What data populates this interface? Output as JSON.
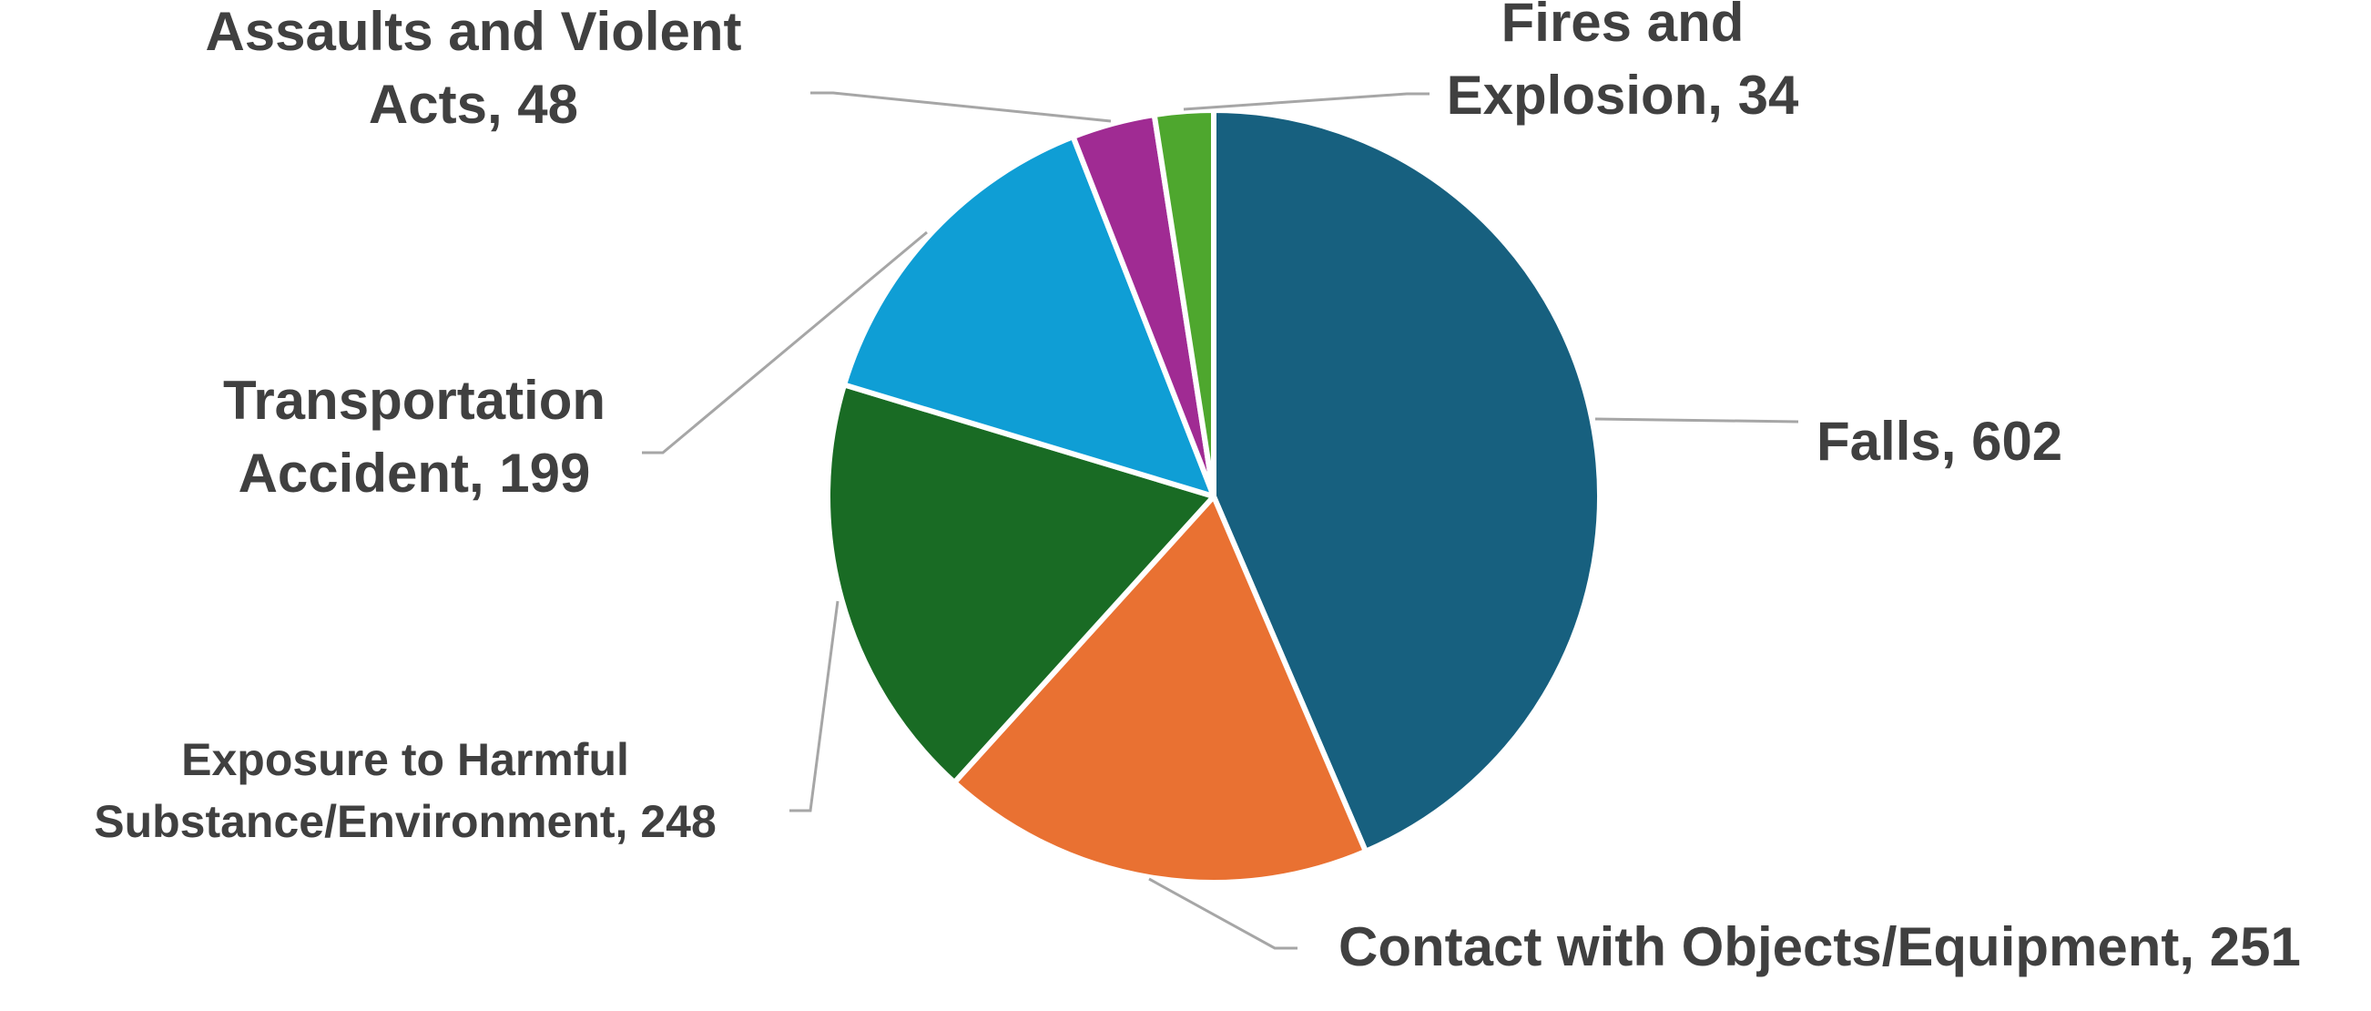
{
  "chart_data": {
    "type": "pie",
    "title": "",
    "start_angle_deg": 0,
    "direction": "clockwise",
    "legend": "none",
    "data_labels": "category-and-value, outside with leader lines",
    "slices": [
      {
        "label_lines": [
          "Falls, 602"
        ],
        "category": "Falls",
        "value": 602,
        "color": "#17607F"
      },
      {
        "label_lines": [
          "Contact with Objects/Equipment, 251"
        ],
        "category": "Contact with Objects/Equipment",
        "value": 251,
        "color": "#E97132"
      },
      {
        "label_lines": [
          "Exposure to Harmful",
          "Substance/Environment, 248"
        ],
        "category": "Exposure to Harmful Substance/Environment",
        "value": 248,
        "color": "#196B24"
      },
      {
        "label_lines": [
          "Transportation",
          "Accident, 199"
        ],
        "category": "Transportation Accident",
        "value": 199,
        "color": "#0F9ED5"
      },
      {
        "label_lines": [
          "Assaults and Violent",
          "Acts, 48"
        ],
        "category": "Assaults and Violent Acts",
        "value": 48,
        "color": "#A02B93"
      },
      {
        "label_lines": [
          "Fires and",
          "Explosion, 34"
        ],
        "category": "Fires and Explosion",
        "value": 34,
        "color": "#4EA72E"
      }
    ]
  }
}
